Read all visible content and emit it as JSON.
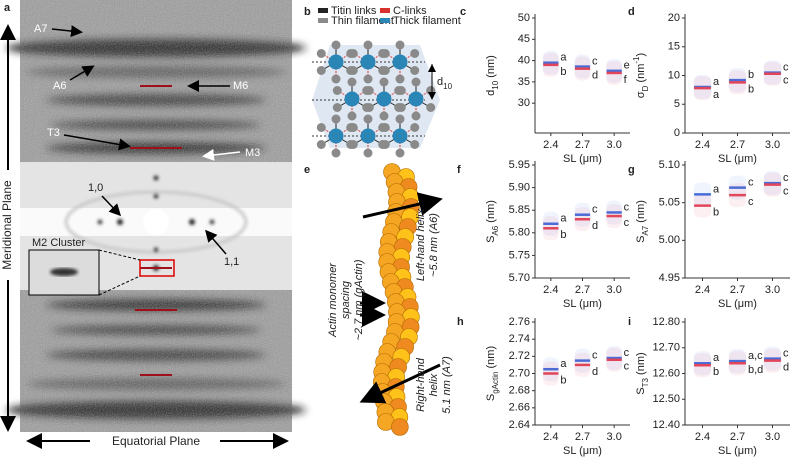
{
  "diffraction": {
    "panel": "a",
    "labels": {
      "a7": "A7",
      "a6": "A6",
      "m6": "M6",
      "t3": "T3",
      "m3": "M3",
      "r10": "1,0",
      "r11": "1,1",
      "m2": "M2 Cluster"
    },
    "y_axis": "Meridional Plane",
    "x_axis": "Equatorial Plane"
  },
  "lattice": {
    "panel": "b",
    "legend": [
      {
        "text": "Titin links",
        "color": "#222222"
      },
      {
        "text": "C-links",
        "color": "#d8322f"
      },
      {
        "text": "Thin filament",
        "color": "#8a8a8a"
      },
      {
        "text": "Thick filament",
        "color": "#2b86b8"
      }
    ],
    "spacing_label": [
      {
        "text": "d"
      },
      {
        "text": "10",
        "script": "sub"
      }
    ]
  },
  "actin": {
    "panel": "e",
    "left_helix": [
      "Left-hand helix",
      "~5.8 nm (A6)"
    ],
    "monomer": [
      "Actin monomer",
      "spacing",
      "~2.7 nm (gActin)"
    ],
    "right_helix": [
      "Right-hand",
      "helix",
      "5.1 nm (A7)"
    ]
  },
  "chart_data": [
    {
      "type": "strip",
      "panel": "c",
      "ylabel": [
        {
          "text": "d"
        },
        {
          "text": "10",
          "script": "sub"
        },
        {
          "text": " (nm)"
        }
      ],
      "xlabel": "SL (μm)",
      "categories": [
        "2.4",
        "2.7",
        "3.0"
      ],
      "ylim": [
        23,
        50
      ],
      "yticks": [
        30,
        35,
        40,
        45,
        50
      ],
      "series": [
        {
          "color": "#3f6fe0",
          "values": [
            39.5,
            38.6,
            37.6
          ],
          "letters": [
            "a",
            "c",
            "e"
          ]
        },
        {
          "color": "#e0455a",
          "values": [
            39.0,
            38.1,
            37.1
          ],
          "letters": [
            "b",
            "d",
            "f"
          ]
        }
      ]
    },
    {
      "type": "strip",
      "panel": "d",
      "ylabel": [
        {
          "text": "σ"
        },
        {
          "text": "D",
          "script": "sub"
        },
        {
          "text": " (nm"
        },
        {
          "text": "-1",
          "script": "super"
        },
        {
          "text": ")"
        }
      ],
      "xlabel": "SL (μm)",
      "categories": [
        "2.4",
        "2.7",
        "3.0"
      ],
      "ylim": [
        0,
        20
      ],
      "yticks": [
        0,
        5,
        10,
        15,
        20
      ],
      "series": [
        {
          "color": "#3f6fe0",
          "values": [
            8.0,
            9.2,
            10.5
          ],
          "letters": [
            "a",
            "b",
            "c"
          ]
        },
        {
          "color": "#e0455a",
          "values": [
            7.8,
            8.8,
            10.3
          ],
          "letters": [
            "a",
            "b",
            "c"
          ]
        }
      ]
    },
    {
      "type": "strip",
      "panel": "f",
      "ylabel": [
        {
          "text": "S"
        },
        {
          "text": "A6",
          "script": "sub"
        },
        {
          "text": " (nm)"
        }
      ],
      "xlabel": "SL (μm)",
      "categories": [
        "2.4",
        "2.7",
        "3.0"
      ],
      "ylim": [
        5.7,
        5.95
      ],
      "yticks": [
        {
          "value": 5.7,
          "label": "5.70"
        },
        5.75,
        {
          "value": 5.8,
          "label": "5.80"
        },
        5.85,
        {
          "value": 5.9,
          "label": "5.90"
        },
        5.95
      ],
      "series": [
        {
          "color": "#3f6fe0",
          "values": [
            5.82,
            5.84,
            5.845
          ],
          "letters": [
            "a",
            "c",
            "c"
          ]
        },
        {
          "color": "#e0455a",
          "values": [
            5.81,
            5.83,
            5.837
          ],
          "letters": [
            "b",
            "d",
            "c"
          ]
        }
      ]
    },
    {
      "type": "strip",
      "panel": "g",
      "ylabel": [
        {
          "text": "S"
        },
        {
          "text": "A7",
          "script": "sub"
        },
        {
          "text": " (nm)"
        }
      ],
      "xlabel": "SL (μm)",
      "categories": [
        "2.4",
        "2.7",
        "3.0"
      ],
      "ylim": [
        4.95,
        5.1
      ],
      "yticks": [
        4.95,
        {
          "value": 5.0,
          "label": "5.00"
        },
        5.05,
        {
          "value": 5.1,
          "label": "5.10"
        }
      ],
      "series": [
        {
          "color": "#3f6fe0",
          "values": [
            5.061,
            5.07,
            5.076
          ],
          "letters": [
            "a",
            "c",
            "c"
          ]
        },
        {
          "color": "#e0455a",
          "values": [
            5.046,
            5.06,
            5.074
          ],
          "letters": [
            "b",
            "c",
            "c"
          ]
        }
      ]
    },
    {
      "type": "strip",
      "panel": "h",
      "ylabel": [
        {
          "text": "S"
        },
        {
          "text": "gActin",
          "script": "sub"
        },
        {
          "text": " (nm)"
        }
      ],
      "xlabel": "SL (μm)",
      "categories": [
        "2.4",
        "2.7",
        "3.0"
      ],
      "ylim": [
        2.64,
        2.76
      ],
      "yticks": [
        2.64,
        2.66,
        2.68,
        {
          "value": 2.7,
          "label": "2.70"
        },
        2.72,
        2.74,
        2.76
      ],
      "series": [
        {
          "color": "#3f6fe0",
          "values": [
            2.705,
            2.715,
            2.718
          ],
          "letters": [
            "a",
            "c",
            "c"
          ]
        },
        {
          "color": "#e0455a",
          "values": [
            2.7,
            2.71,
            2.716
          ],
          "letters": [
            "b",
            "d",
            "c"
          ]
        }
      ]
    },
    {
      "type": "strip",
      "panel": "i",
      "ylabel": [
        {
          "text": "S"
        },
        {
          "text": "T3",
          "script": "sub"
        },
        {
          "text": " (nm)"
        }
      ],
      "xlabel": "SL (μm)",
      "categories": [
        "2.4",
        "2.7",
        "3.0"
      ],
      "ylim": [
        12.4,
        12.8
      ],
      "yticks": [
        {
          "value": 12.4,
          "label": "12.40"
        },
        {
          "value": 12.5,
          "label": "12.50"
        },
        {
          "value": 12.6,
          "label": "12.60"
        },
        {
          "value": 12.7,
          "label": "12.70"
        },
        {
          "value": 12.8,
          "label": "12.80"
        }
      ],
      "series": [
        {
          "color": "#3f6fe0",
          "values": [
            12.64,
            12.648,
            12.658
          ],
          "letters": [
            "a",
            "a,c",
            "c"
          ]
        },
        {
          "color": "#e0455a",
          "values": [
            12.632,
            12.64,
            12.65
          ],
          "letters": [
            "b",
            "b,d",
            "d"
          ]
        }
      ]
    }
  ]
}
